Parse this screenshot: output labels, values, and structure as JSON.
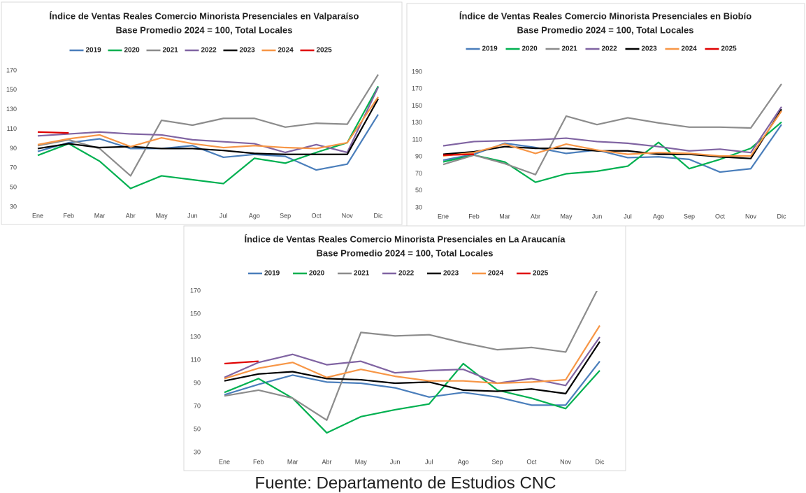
{
  "chart_data": [
    {
      "type": "line",
      "title": "Índice de Ventas Reales Comercio Minorista Presenciales en Valparaíso",
      "subtitle": "Base Promedio 2024 = 100, Total Locales",
      "categories": [
        "Ene",
        "Feb",
        "Mar",
        "Abr",
        "May",
        "Jun",
        "Jul",
        "Ago",
        "Sep",
        "Oct",
        "Nov",
        "Dic"
      ],
      "ylim": [
        30,
        170
      ],
      "yticks": [
        30,
        50,
        70,
        90,
        110,
        130,
        150,
        170
      ],
      "grid": false,
      "legend": "top",
      "series": [
        {
          "name": "2019",
          "color": "#4a7ebb",
          "values": [
            87,
            96,
            100,
            90,
            90,
            93,
            81,
            84,
            82,
            68,
            74,
            125
          ]
        },
        {
          "name": "2020",
          "color": "#00b050",
          "values": [
            83,
            95,
            77,
            49,
            62,
            58,
            54,
            80,
            75,
            86,
            96,
            154
          ]
        },
        {
          "name": "2021",
          "color": "#8c8c8c",
          "values": [
            93,
            99,
            90,
            62,
            119,
            114,
            121,
            121,
            112,
            116,
            115,
            166
          ]
        },
        {
          "name": "2022",
          "color": "#8064a2",
          "values": [
            103,
            105,
            107,
            105,
            104,
            99,
            97,
            95,
            86,
            94,
            86,
            153
          ]
        },
        {
          "name": "2023",
          "color": "#000000",
          "values": [
            90,
            95,
            91,
            92,
            90,
            90,
            88,
            85,
            84,
            84,
            84,
            141
          ]
        },
        {
          "name": "2024",
          "color": "#f79646",
          "values": [
            94,
            100,
            104,
            92,
            101,
            95,
            91,
            93,
            91,
            90,
            96,
            143
          ]
        },
        {
          "name": "2025",
          "color": "#e00000",
          "values": [
            107,
            106,
            null,
            null,
            null,
            null,
            null,
            null,
            null,
            null,
            null,
            null
          ]
        }
      ]
    },
    {
      "type": "line",
      "title": "Índice de Ventas Reales Comercio Minorista Presenciales en Biobío",
      "subtitle": "Base Promedio 2024 = 100, Total Locales",
      "categories": [
        "Ene",
        "Feb",
        "Mar",
        "Abr",
        "May",
        "Jun",
        "Jul",
        "Ago",
        "Sep",
        "Oct",
        "Nov",
        "Dic"
      ],
      "ylim": [
        30,
        190
      ],
      "yticks": [
        30,
        50,
        70,
        90,
        110,
        130,
        150,
        170,
        190
      ],
      "grid": false,
      "legend": "top",
      "series": [
        {
          "name": "2019",
          "color": "#4a7ebb",
          "values": [
            86,
            93,
            106,
            101,
            94,
            98,
            89,
            90,
            87,
            72,
            76,
            128
          ]
        },
        {
          "name": "2020",
          "color": "#00b050",
          "values": [
            84,
            92,
            84,
            60,
            70,
            73,
            79,
            107,
            76,
            87,
            100,
            131
          ]
        },
        {
          "name": "2021",
          "color": "#8c8c8c",
          "values": [
            81,
            92,
            82,
            69,
            138,
            128,
            136,
            130,
            125,
            125,
            124,
            176
          ]
        },
        {
          "name": "2022",
          "color": "#8064a2",
          "values": [
            103,
            108,
            109,
            110,
            112,
            108,
            106,
            102,
            97,
            99,
            95,
            149
          ]
        },
        {
          "name": "2023",
          "color": "#000000",
          "values": [
            93,
            96,
            102,
            100,
            100,
            97,
            97,
            93,
            93,
            90,
            88,
            146
          ]
        },
        {
          "name": "2024",
          "color": "#f79646",
          "values": [
            91,
            95,
            105,
            94,
            105,
            98,
            93,
            95,
            94,
            91,
            91,
            144
          ]
        },
        {
          "name": "2025",
          "color": "#e00000",
          "values": [
            92,
            93,
            null,
            null,
            null,
            null,
            null,
            null,
            null,
            null,
            null,
            null
          ]
        }
      ]
    },
    {
      "type": "line",
      "title": "Índice de Ventas Reales Comercio Minorista Presenciales en La Araucanía",
      "subtitle": "Base Promedio 2024 = 100, Total Locales",
      "categories": [
        "Ene",
        "Feb",
        "Mar",
        "Abr",
        "May",
        "Jun",
        "Jul",
        "Ago",
        "Sep",
        "Oct",
        "Nov",
        "Dic"
      ],
      "ylim": [
        30,
        170
      ],
      "yticks": [
        30,
        50,
        70,
        90,
        110,
        130,
        150,
        170
      ],
      "grid": false,
      "legend": "top",
      "series": [
        {
          "name": "2019",
          "color": "#4a7ebb",
          "values": [
            80,
            89,
            97,
            91,
            90,
            86,
            78,
            82,
            78,
            71,
            71,
            109
          ]
        },
        {
          "name": "2020",
          "color": "#00b050",
          "values": [
            82,
            94,
            77,
            47,
            61,
            67,
            72,
            107,
            84,
            77,
            68,
            101
          ]
        },
        {
          "name": "2021",
          "color": "#8c8c8c",
          "values": [
            79,
            84,
            77,
            58,
            134,
            131,
            132,
            125,
            119,
            121,
            117,
            175
          ]
        },
        {
          "name": "2022",
          "color": "#8064a2",
          "values": [
            95,
            108,
            115,
            106,
            109,
            99,
            101,
            102,
            90,
            94,
            88,
            130
          ]
        },
        {
          "name": "2023",
          "color": "#000000",
          "values": [
            92,
            98,
            100,
            94,
            93,
            90,
            91,
            84,
            83,
            85,
            81,
            126
          ]
        },
        {
          "name": "2024",
          "color": "#f79646",
          "values": [
            94,
            103,
            108,
            95,
            102,
            96,
            92,
            92,
            90,
            91,
            93,
            140
          ]
        },
        {
          "name": "2025",
          "color": "#e00000",
          "values": [
            107,
            109,
            null,
            null,
            null,
            null,
            null,
            null,
            null,
            null,
            null,
            null
          ]
        }
      ]
    }
  ],
  "source": "Fuente: Departamento de Estudios CNC"
}
